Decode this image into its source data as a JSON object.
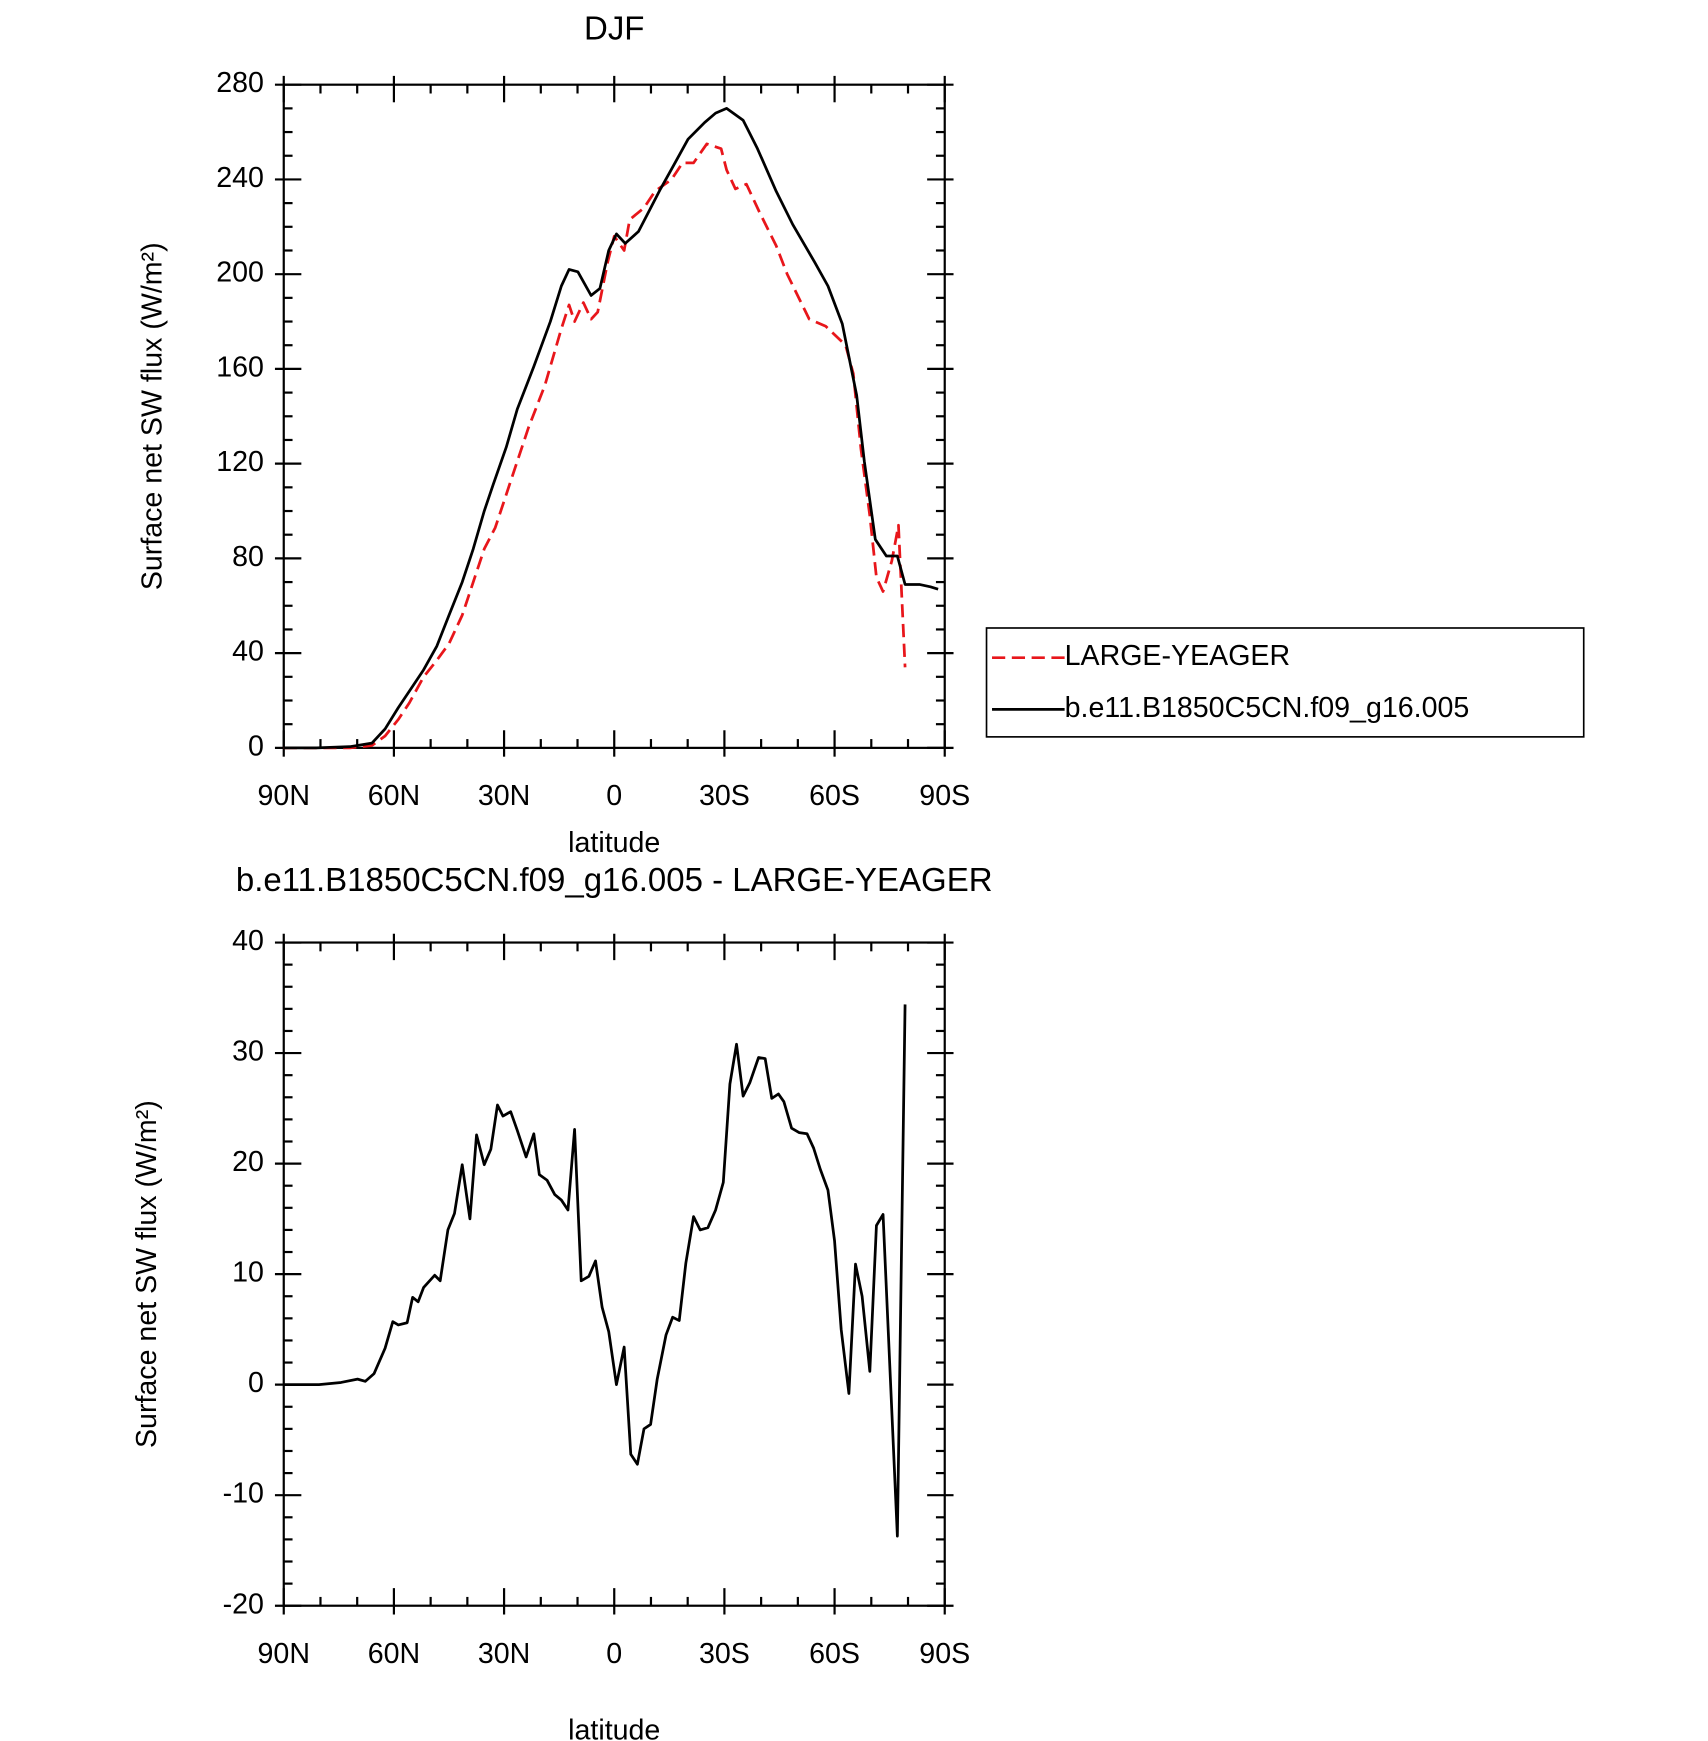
{
  "chart_data": [
    {
      "type": "line",
      "title": "DJF",
      "xlabel": "latitude",
      "ylabel": "Surface net SW flux (W/m²)",
      "xlim": [
        90,
        -90
      ],
      "xticks": [
        {
          "value": 90,
          "label": "90N"
        },
        {
          "value": 60,
          "label": "60N"
        },
        {
          "value": 30,
          "label": "30N"
        },
        0,
        {
          "value": -30,
          "label": "30S"
        },
        {
          "value": -60,
          "label": "60S"
        },
        {
          "value": -90,
          "label": "90S"
        }
      ],
      "ylim": [
        0,
        280
      ],
      "yticks": [
        0,
        40,
        80,
        120,
        160,
        200,
        240,
        280
      ],
      "legend": "right",
      "series": [
        {
          "name": "LARGE-YEAGER",
          "color": "#e8161b",
          "line_style": "dashed",
          "x": [
            90,
            72,
            66,
            62.4,
            58.8,
            55.8,
            51.9,
            48.3,
            45,
            41.4,
            38.4,
            35.4,
            32.4,
            29.4,
            26.4,
            23.4,
            18.9,
            14.4,
            12.3,
            10.8,
            8.4,
            6.3,
            4.5,
            1.8,
            0,
            -2.7,
            -4.2,
            -8.1,
            -11.1,
            -15.6,
            -18.6,
            -21.6,
            -25.2,
            -29.1,
            -30.6,
            -33,
            -36,
            -39.6,
            -44.1,
            -47.1,
            -53.1,
            -57.6,
            -63,
            -65.1,
            -67.2,
            -69.6,
            -71.4,
            -73.2,
            -75.6,
            -77.4,
            -79.2
          ],
          "values": [
            0,
            0,
            1,
            5,
            12,
            19,
            30,
            37,
            44,
            56,
            70,
            84,
            93,
            107,
            121,
            135,
            153,
            177,
            187,
            180,
            188,
            181,
            184,
            205,
            216,
            210,
            223,
            228,
            235,
            240,
            247,
            247,
            255,
            253,
            244,
            236,
            238,
            226,
            212,
            200,
            181,
            178,
            170,
            158,
            126,
            98,
            72,
            66,
            79,
            94,
            34
          ]
        },
        {
          "name": "b.e11.B1850C5CN.f09_g16.005",
          "color": "#000000",
          "line_style": "solid",
          "x": [
            90,
            81,
            72,
            66,
            62.4,
            58.8,
            54.9,
            51.9,
            48.3,
            45,
            41.4,
            38.4,
            35.4,
            33,
            29.4,
            26.4,
            21.9,
            17.4,
            14.4,
            12.3,
            9.9,
            6.3,
            3.9,
            1.5,
            -0.6,
            -3,
            -6.6,
            -9.6,
            -12.6,
            -16.2,
            -20.1,
            -24.6,
            -27.6,
            -30.6,
            -35.1,
            -39,
            -44.1,
            -48.6,
            -54.6,
            -58.2,
            -62.1,
            -66,
            -68.1,
            -71.1,
            -74.1,
            -77.1,
            -79.2,
            -83.1,
            -86.1,
            -88.2
          ],
          "values": [
            0,
            0,
            0.5,
            2,
            8,
            17,
            26,
            33,
            43,
            56,
            70,
            84,
            100,
            111,
            127,
            143,
            161,
            180,
            195,
            202,
            201,
            191,
            194,
            210,
            217,
            213,
            218,
            227,
            236,
            246,
            257,
            264,
            268,
            270,
            265,
            253,
            235,
            221,
            205,
            195,
            179,
            149,
            121,
            88,
            81,
            81,
            69,
            69,
            68,
            67
          ]
        }
      ]
    },
    {
      "type": "line",
      "title": "b.e11.B1850C5CN.f09_g16.005 - LARGE-YEAGER",
      "xlabel": "latitude",
      "ylabel": "Surface net SW flux (W/m²)",
      "xlim": [
        90,
        -90
      ],
      "xticks": [
        {
          "value": 90,
          "label": "90N"
        },
        {
          "value": 60,
          "label": "60N"
        },
        {
          "value": 30,
          "label": "30N"
        },
        0,
        {
          "value": -30,
          "label": "30S"
        },
        {
          "value": -60,
          "label": "60S"
        },
        {
          "value": -90,
          "label": "90S"
        }
      ],
      "ylim": [
        -20,
        40
      ],
      "yticks": [
        -20,
        -10,
        0,
        10,
        20,
        30,
        40
      ],
      "color": "#000000",
      "x": [
        90,
        80.4,
        74.4,
        69.9,
        67.8,
        65.4,
        62.4,
        60.3,
        58.8,
        56.4,
        54.9,
        53.4,
        51.9,
        48.9,
        47.4,
        45.3,
        43.5,
        41.4,
        39.3,
        37.5,
        35.4,
        33.6,
        31.8,
        30.3,
        28.2,
        26.4,
        24,
        21.9,
        20.4,
        18.3,
        16.2,
        14.4,
        12.6,
        10.8,
        9,
        6.9,
        5.1,
        3.3,
        1.5,
        -0.6,
        -2.7,
        -4.5,
        -6.3,
        -8.1,
        -9.9,
        -11.7,
        -14.1,
        -15.9,
        -17.7,
        -19.5,
        -21.6,
        -23.4,
        -25.5,
        -27.6,
        -29.7,
        -31.5,
        -33.3,
        -35.1,
        -36.9,
        -39.3,
        -41.1,
        -42.9,
        -44.7,
        -46.2,
        -48.3,
        -50.4,
        -52.5,
        -54.3,
        -56.1,
        -58.2,
        -60,
        -61.8,
        -63.9,
        -65.7,
        -67.5,
        -69.6,
        -71.4,
        -73.2,
        -75,
        -77.1,
        -79.2
      ],
      "values": [
        0,
        0,
        0.2,
        0.5,
        0.3,
        1,
        3.3,
        5.7,
        5.4,
        5.6,
        7.9,
        7.5,
        8.8,
        9.9,
        9.4,
        14,
        15.5,
        19.9,
        15,
        22.6,
        19.9,
        21.3,
        25.3,
        24.3,
        24.7,
        23,
        20.6,
        22.7,
        19,
        18.5,
        17.2,
        16.7,
        15.8,
        23.1,
        9.4,
        9.8,
        11.2,
        7,
        4.8,
        0,
        3.4,
        -6.3,
        -7.2,
        -4,
        -3.6,
        0.5,
        4.5,
        6.1,
        5.8,
        11,
        15.2,
        14,
        14.2,
        15.8,
        18.3,
        27.2,
        30.8,
        26.1,
        27.3,
        29.6,
        29.5,
        25.9,
        26.3,
        25.6,
        23.2,
        22.8,
        22.7,
        21.4,
        19.5,
        17.6,
        13,
        5,
        -0.8,
        10.9,
        8,
        1.2,
        14.4,
        15.4,
        2,
        -13.7,
        34.4
      ]
    }
  ]
}
